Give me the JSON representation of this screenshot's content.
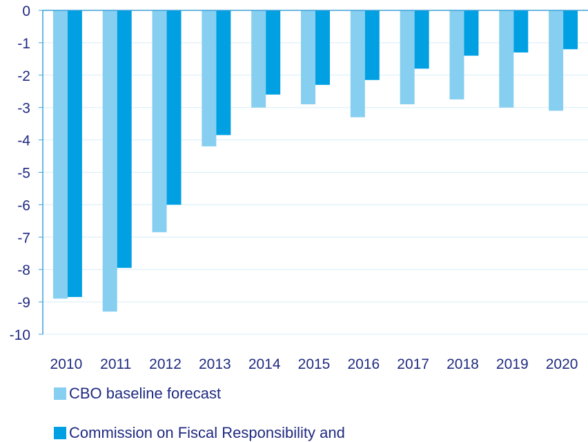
{
  "chart_data": {
    "type": "bar",
    "title": "",
    "xlabel": "",
    "ylabel": "",
    "categories": [
      "2010",
      "2011",
      "2012",
      "2013",
      "2014",
      "2015",
      "2016",
      "2017",
      "2018",
      "2019",
      "2020"
    ],
    "series": [
      {
        "name": "CBO baseline forecast",
        "color": "#87cff0",
        "values": [
          -8.9,
          -9.3,
          -6.85,
          -4.2,
          -3.0,
          -2.9,
          -3.3,
          -2.9,
          -2.75,
          -3.0,
          -3.1
        ]
      },
      {
        "name": "Commission on Fiscal Responsibility and",
        "color": "#00a0e3",
        "values": [
          -8.85,
          -7.95,
          -6.0,
          -3.85,
          -2.6,
          -2.3,
          -2.15,
          -1.8,
          -1.4,
          -1.3,
          -1.2
        ]
      }
    ],
    "ylim": [
      -10,
      0
    ],
    "yticks": [
      "0",
      "-1",
      "-2",
      "-3",
      "-4",
      "-5",
      "-6",
      "-7",
      "-8",
      "-9",
      "-10"
    ],
    "grid": true,
    "legend_position": "bottom-left"
  }
}
